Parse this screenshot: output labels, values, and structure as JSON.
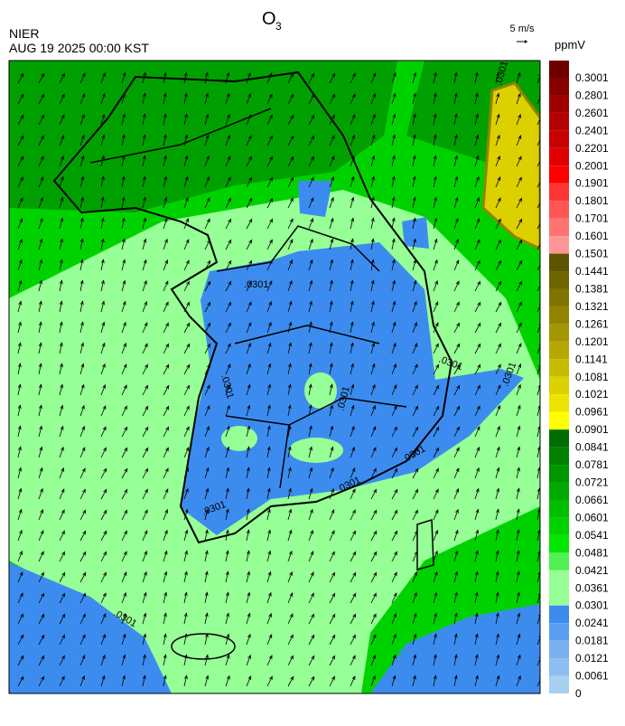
{
  "header": {
    "title": "O",
    "title_subscript": "3",
    "agency": "NIER",
    "datetime": "AUG 19 2025 00:00 KST",
    "wind_scale": "5 m/s",
    "unit": "ppmV"
  },
  "colorbar": {
    "ticks": [
      0.3001,
      0.2801,
      0.2601,
      0.2401,
      0.2201,
      0.2001,
      0.1901,
      0.1801,
      0.1701,
      0.1601,
      0.1501,
      0.1441,
      0.1381,
      0.1321,
      0.1261,
      0.1201,
      0.1141,
      0.1081,
      0.1021,
      0.0961,
      0.0901,
      0.0841,
      0.0781,
      0.0721,
      0.0661,
      0.0601,
      0.0541,
      0.0481,
      0.0421,
      0.0361,
      0.0301,
      0.0241,
      0.0181,
      0.0121,
      0.0061,
      0
    ],
    "colors": [
      "#6e0000",
      "#870000",
      "#a00000",
      "#b40000",
      "#c80000",
      "#e10000",
      "#ff0000",
      "#ff3535",
      "#ff5555",
      "#ff7373",
      "#ff9696",
      "#5e5400",
      "#6e6400",
      "#807400",
      "#928400",
      "#a49600",
      "#b6a800",
      "#c8bc00",
      "#dcd000",
      "#ece400",
      "#ffff00",
      "#006e00",
      "#008200",
      "#009600",
      "#00aa00",
      "#00be00",
      "#00d200",
      "#00e600",
      "#50f050",
      "#96ff96",
      "#96ff96",
      "#3c8cf0",
      "#5a9ef0",
      "#78b0f0",
      "#8cbef0",
      "#a8d0f0"
    ]
  },
  "contour_labels": [
    ".0301",
    ".0301",
    ".0301",
    ".0301",
    ".0301",
    ".0301",
    ".0301",
    ".0301",
    ".0301",
    ".0301"
  ]
}
